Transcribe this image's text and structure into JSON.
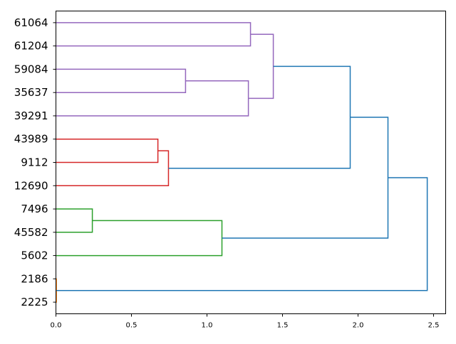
{
  "chart_data": {
    "type": "dendrogram",
    "orientation": "left",
    "title": "",
    "xlabel": "",
    "ylabel": "",
    "xlim": [
      0,
      2.58
    ],
    "x_ticks": [
      "0.0",
      "0.5",
      "1.0",
      "1.5",
      "2.0",
      "2.5"
    ],
    "x_tick_values": [
      0,
      0.5,
      1.0,
      1.5,
      2.0,
      2.5
    ],
    "leaves": [
      "61064",
      "61204",
      "59084",
      "35637",
      "39291",
      "43989",
      "9112",
      "12690",
      "7496",
      "45582",
      "5602",
      "2186",
      "2225"
    ],
    "links": [
      {
        "y1": 0,
        "h1": 0,
        "y2": 1,
        "h2": 0,
        "h": 1.288,
        "color": "#9467bd"
      },
      {
        "y1": 2,
        "h1": 0,
        "y2": 3,
        "h2": 0,
        "h": 0.858,
        "color": "#9467bd"
      },
      {
        "y1": 2.5,
        "h1": 0.858,
        "y2": 4,
        "h2": 0,
        "h": 1.274,
        "color": "#9467bd"
      },
      {
        "y1": 0.5,
        "h1": 1.288,
        "y2": 3.25,
        "h2": 1.274,
        "h": 1.439,
        "color": "#9467bd"
      },
      {
        "y1": 5,
        "h1": 0,
        "y2": 6,
        "h2": 0,
        "h": 0.675,
        "color": "#d62728"
      },
      {
        "y1": 5.5,
        "h1": 0.675,
        "y2": 7,
        "h2": 0,
        "h": 0.745,
        "color": "#d62728"
      },
      {
        "y1": 1.875,
        "h1": 1.439,
        "y2": 6.25,
        "h2": 0.745,
        "h": 1.948,
        "color": "#1f77b4"
      },
      {
        "y1": 8,
        "h1": 0,
        "y2": 9,
        "h2": 0,
        "h": 0.241,
        "color": "#2ca02c"
      },
      {
        "y1": 8.5,
        "h1": 0.241,
        "y2": 10,
        "h2": 0,
        "h": 1.099,
        "color": "#2ca02c"
      },
      {
        "y1": 4.0625,
        "h1": 1.948,
        "y2": 9.25,
        "h2": 1.099,
        "h": 2.198,
        "color": "#1f77b4"
      },
      {
        "y1": 11,
        "h1": 0,
        "y2": 12,
        "h2": 0,
        "h": 0.003,
        "color": "#ff7f0e"
      },
      {
        "y1": 6.65625,
        "h1": 2.198,
        "y2": 11.5,
        "h2": 0.003,
        "h": 2.458,
        "color": "#1f77b4"
      }
    ]
  }
}
